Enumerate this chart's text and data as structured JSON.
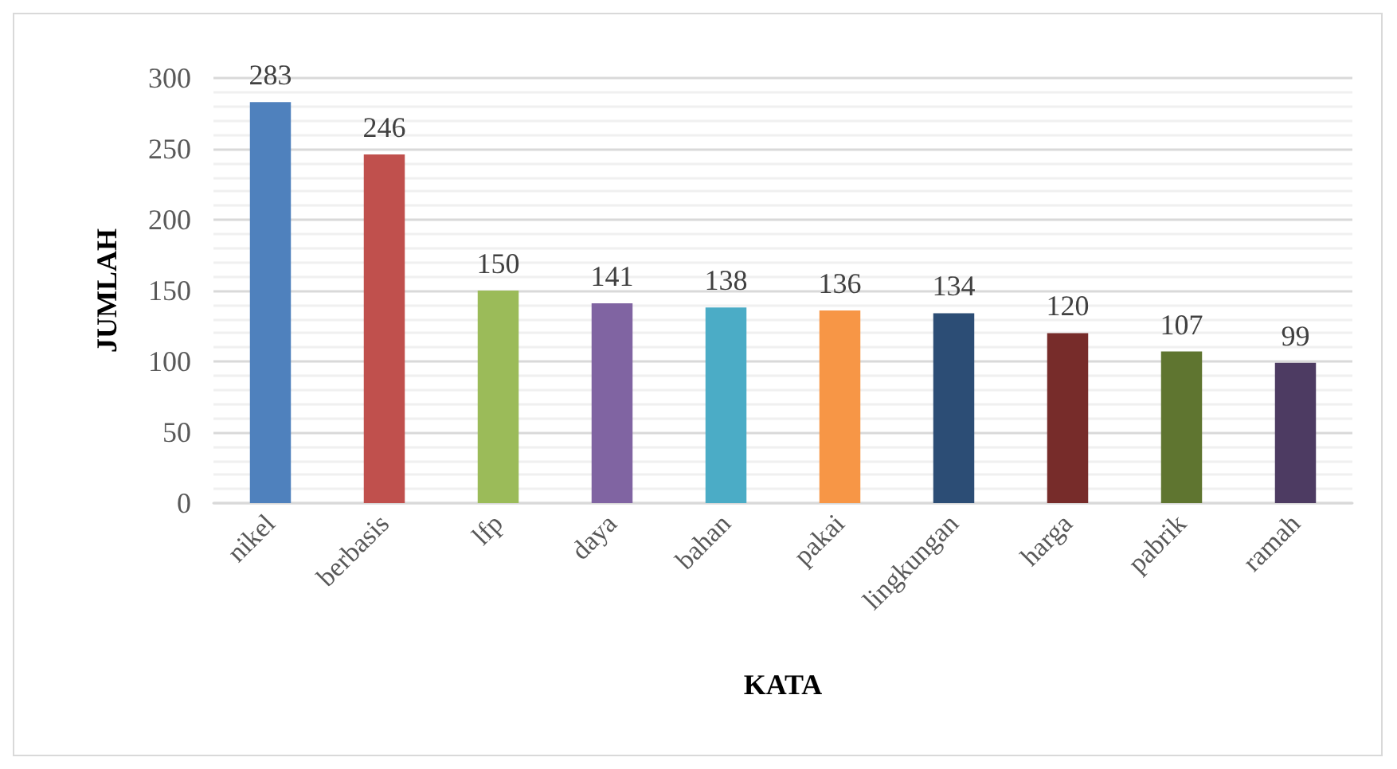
{
  "chart_data": {
    "type": "bar",
    "xlabel": "KATA",
    "ylabel": "JUMLAH",
    "categories": [
      "nikel",
      "berbasis",
      "lfp",
      "daya",
      "bahan",
      "pakai",
      "lingkungan",
      "harga",
      "pabrik",
      "ramah"
    ],
    "values": [
      283,
      246,
      150,
      141,
      138,
      136,
      134,
      120,
      107,
      99
    ],
    "colors": [
      "#4f81bd",
      "#c0504d",
      "#9bbb59",
      "#8064a2",
      "#4bacc6",
      "#f79646",
      "#2c4d75",
      "#772c2a",
      "#5f7530",
      "#4d3b62"
    ],
    "ylim": [
      0,
      300
    ],
    "yticks": [
      0,
      50,
      100,
      150,
      200,
      250,
      300
    ],
    "grid": true,
    "data_labels": true
  }
}
